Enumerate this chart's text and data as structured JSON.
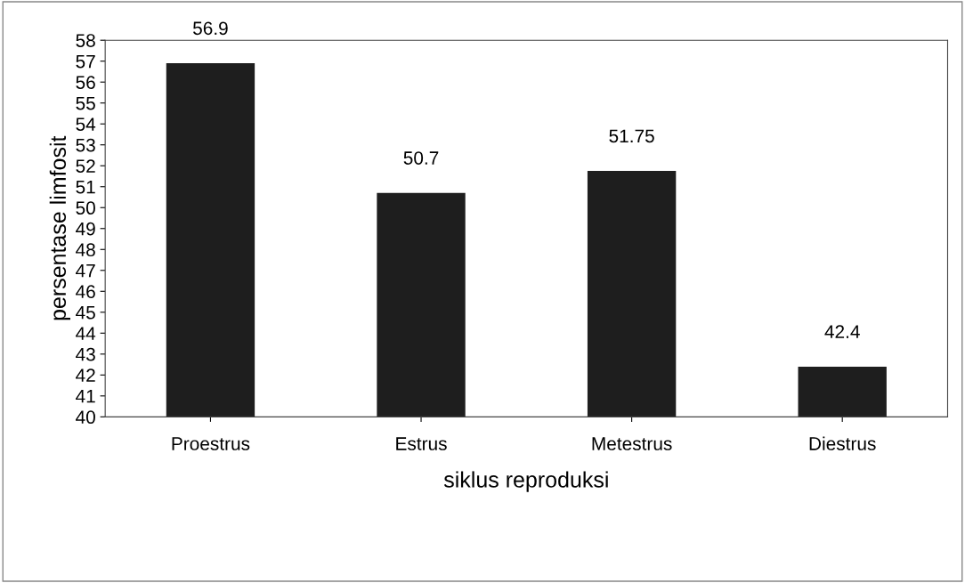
{
  "chart_data": {
    "type": "bar",
    "xlabel": "siklus reproduksi",
    "ylabel": "persentase limfosit",
    "categories": [
      "Proestrus",
      "Estrus",
      "Metestrus",
      "Diestrus"
    ],
    "values": [
      56.9,
      50.7,
      51.75,
      42.4
    ],
    "color": "#1e1e1e",
    "ylim": [
      40,
      58
    ],
    "yticks": [
      40,
      41,
      42,
      43,
      44,
      45,
      46,
      47,
      48,
      49,
      50,
      51,
      52,
      53,
      54,
      55,
      56,
      57,
      58
    ],
    "grid": false,
    "data_labels": true
  }
}
